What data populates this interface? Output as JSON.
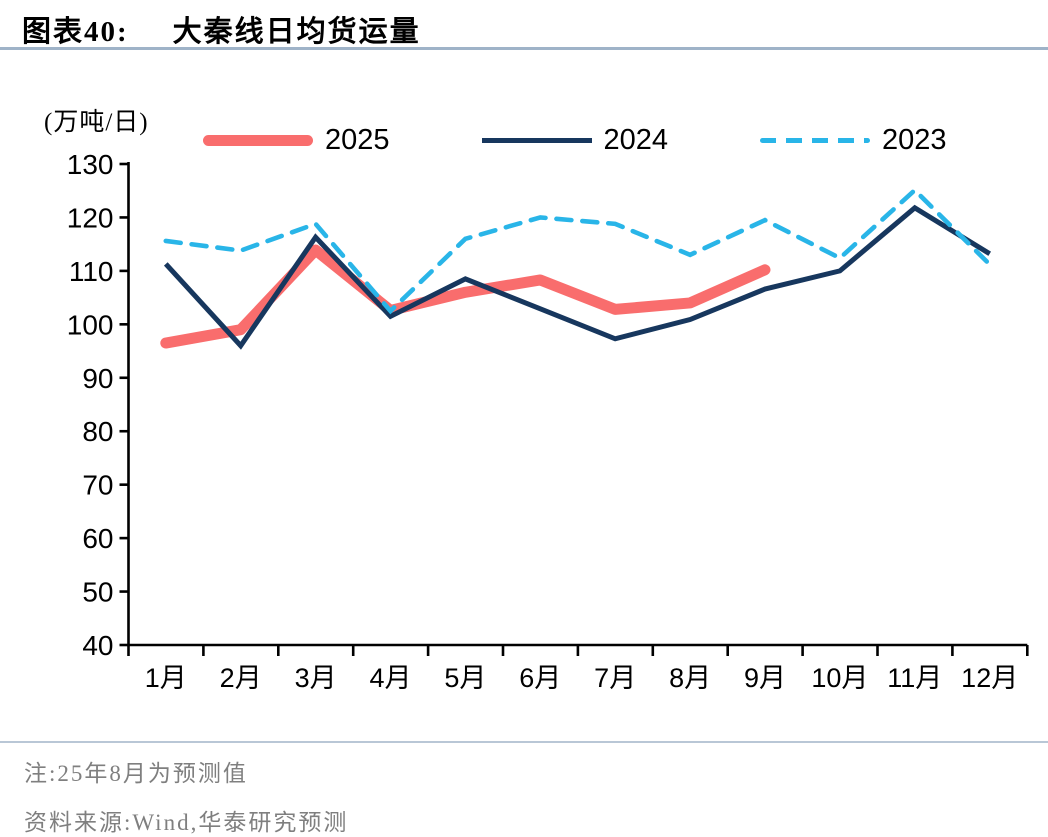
{
  "header": {
    "label": "图表40:",
    "title": "大秦线日均货运量"
  },
  "footer": {
    "note": "注:25年8月为预测值",
    "source": "资料来源:Wind,华泰研究预测"
  },
  "colors": {
    "series_2025": "#F96D6D",
    "series_2024": "#17375E",
    "series_2023": "#29B5E8",
    "title_rule": "#9FB3C8",
    "footer_rule": "#B9C7D6",
    "axis": "#000000",
    "footer_text": "#7F7F7F"
  },
  "chart_data": {
    "type": "line",
    "title": "大秦线日均货运量",
    "unit_label": "(万吨/日)",
    "categories": [
      "1月",
      "2月",
      "3月",
      "4月",
      "5月",
      "6月",
      "7月",
      "8月",
      "9月",
      "10月",
      "11月",
      "12月"
    ],
    "yticks": [
      40,
      50,
      60,
      70,
      80,
      90,
      100,
      110,
      120,
      130
    ],
    "ylim": [
      40,
      130
    ],
    "grid": false,
    "legend_position": "top",
    "series": [
      {
        "name": "2025",
        "color": "#F96D6D",
        "style": "solid-thick",
        "values": [
          96.5,
          99,
          113.9,
          102.6,
          106,
          108.3,
          102.8,
          104,
          110.2
        ]
      },
      {
        "name": "2024",
        "color": "#17375E",
        "style": "solid",
        "values": [
          111.3,
          96,
          116.3,
          101.5,
          108.5,
          102.9,
          97.3,
          100.9,
          106.6,
          110,
          121.8,
          113.2
        ]
      },
      {
        "name": "2023",
        "color": "#29B5E8",
        "style": "dashed",
        "values": [
          115.6,
          113.8,
          118.8,
          102.5,
          116,
          120,
          118.8,
          113,
          119.5,
          112.4,
          125.1,
          111.2
        ]
      }
    ]
  }
}
